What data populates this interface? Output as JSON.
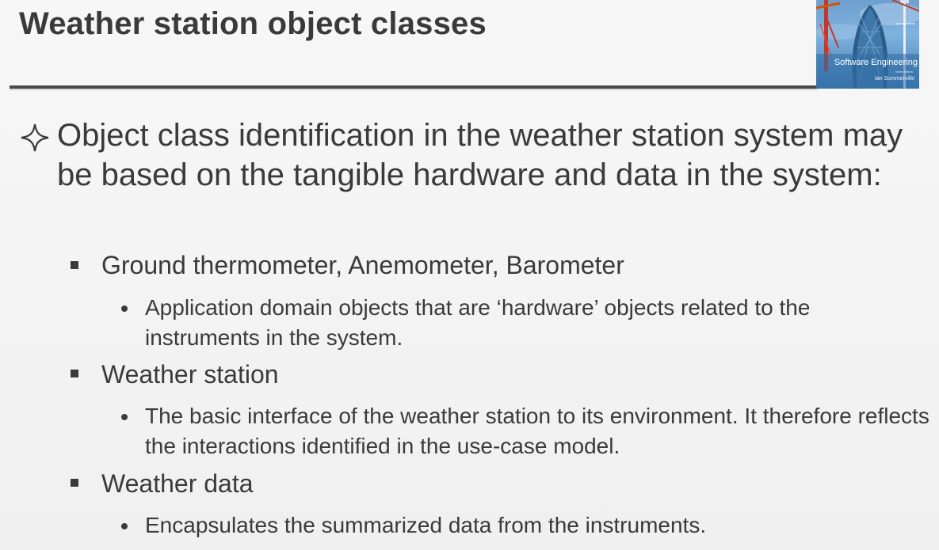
{
  "slide": {
    "title": "Weather station object classes",
    "cover": {
      "title": "Software Engineering",
      "edition": "tenth edition",
      "author": "Ian Sommerville"
    },
    "main_point": {
      "icon": "four-point-star-outline-icon",
      "text": "Object class identification in the weather station system may be based on the tangible hardware and data in the system:"
    },
    "items": [
      {
        "label": "Ground thermometer, Anemometer, Barometer",
        "detail": "Application domain objects that are ‘hardware’ objects related to the instruments in the system."
      },
      {
        "label": "Weather station",
        "detail": "The basic interface of the weather station to its environment. It therefore reflects the interactions identified in the use-case model."
      },
      {
        "label": "Weather data",
        "detail": "Encapsulates the summarized data from the instruments."
      }
    ]
  }
}
